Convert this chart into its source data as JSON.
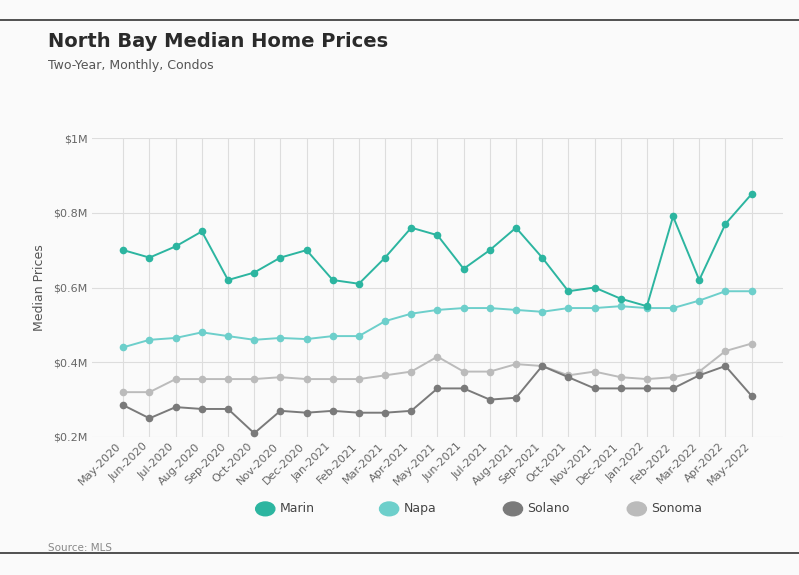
{
  "title": "North Bay Median Home Prices",
  "subtitle": "Two-Year, Monthly, Condos",
  "source": "Source: MLS",
  "ylabel": "Median Prices",
  "labels": [
    "May-2020",
    "Jun-2020",
    "Jul-2020",
    "Aug-2020",
    "Sep-2020",
    "Oct-2020",
    "Nov-2020",
    "Dec-2020",
    "Jan-2021",
    "Feb-2021",
    "Mar-2021",
    "Apr-2021",
    "May-2021",
    "Jun-2021",
    "Jul-2021",
    "Aug-2021",
    "Sep-2021",
    "Oct-2021",
    "Nov-2021",
    "Dec-2021",
    "Jan-2022",
    "Feb-2022",
    "Mar-2022",
    "Apr-2022",
    "May-2022"
  ],
  "marin": [
    700000,
    680000,
    710000,
    750000,
    620000,
    640000,
    680000,
    700000,
    620000,
    610000,
    680000,
    760000,
    740000,
    650000,
    700000,
    760000,
    680000,
    590000,
    600000,
    570000,
    550000,
    790000,
    620000,
    770000,
    850000
  ],
  "napa": [
    440000,
    460000,
    465000,
    480000,
    470000,
    460000,
    465000,
    462000,
    470000,
    470000,
    510000,
    530000,
    540000,
    545000,
    545000,
    540000,
    535000,
    545000,
    545000,
    550000,
    545000,
    545000,
    565000,
    590000,
    590000
  ],
  "solano": [
    285000,
    250000,
    280000,
    275000,
    275000,
    210000,
    270000,
    265000,
    270000,
    265000,
    265000,
    270000,
    330000,
    330000,
    300000,
    305000,
    390000,
    360000,
    330000,
    330000,
    330000,
    330000,
    365000,
    390000,
    310000
  ],
  "sonoma": [
    320000,
    320000,
    355000,
    355000,
    355000,
    355000,
    360000,
    355000,
    355000,
    355000,
    365000,
    375000,
    415000,
    375000,
    375000,
    395000,
    390000,
    365000,
    375000,
    360000,
    355000,
    360000,
    375000,
    430000,
    450000
  ],
  "marin_color": "#2CB5A0",
  "napa_color": "#6DCFCB",
  "solano_color": "#7A7A7A",
  "sonoma_color": "#BBBBBB",
  "background_color": "#FAFAFA",
  "plot_bg_color": "#FAFAFA",
  "grid_color": "#DDDDDD",
  "border_color": "#333333",
  "ylim_min": 200000,
  "ylim_max": 1000000,
  "ytick_vals": [
    200000,
    400000,
    600000,
    800000,
    1000000
  ],
  "ytick_labels": [
    "$0.2M",
    "$0.4M",
    "$0.6M",
    "$0.8M",
    "$1M"
  ],
  "title_fontsize": 14,
  "subtitle_fontsize": 9,
  "tick_fontsize": 8,
  "ylabel_fontsize": 9
}
